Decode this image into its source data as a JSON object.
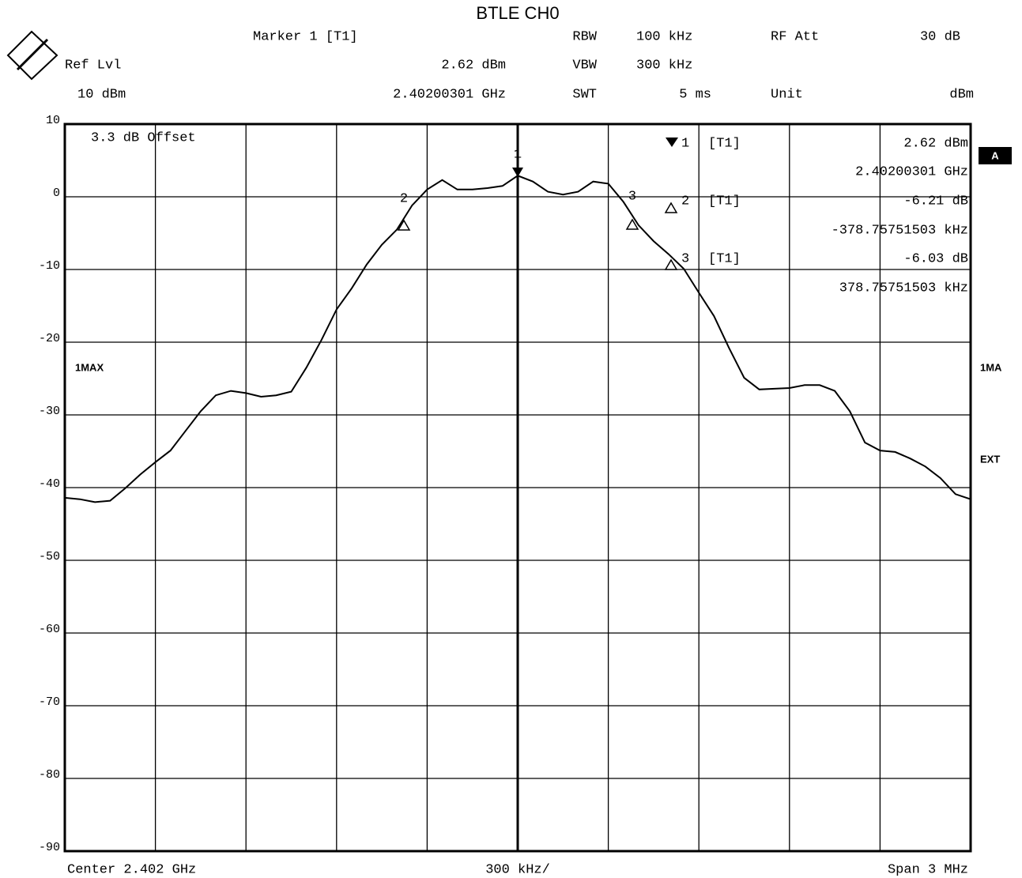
{
  "chart_data": {
    "type": "line",
    "title": "BTLE CH0",
    "header": {
      "marker": "Marker 1 [T1]",
      "rbw_label": "RBW",
      "rbw": "100 kHz",
      "att_label": "RF Att",
      "att": "30 dB",
      "ref_label": "Ref Lvl",
      "marker_level": "2.62 dBm",
      "vbw_label": "VBW",
      "vbw": "300 kHz",
      "ref_level": "10 dBm",
      "marker_freq": "2.40200301 GHz",
      "swt_label": "SWT",
      "swt": "5 ms",
      "unit_label": "Unit",
      "unit": "dBm"
    },
    "offset": "3.3 dB Offset",
    "trace_label": "1MAX",
    "side_labels": [
      "A",
      "1MA",
      "EXT"
    ],
    "markers": [
      {
        "label": "1",
        "trace": "[T1]",
        "level": "2.62 dBm",
        "position": "2.40200301 GHz"
      },
      {
        "label": "2",
        "trace": "[T1]",
        "level": "-6.21 dB",
        "position": "-378.75751503 kHz"
      },
      {
        "label": "3",
        "trace": "[T1]",
        "level": "-6.03 dB",
        "position": "378.75751503 kHz"
      }
    ],
    "footer": {
      "center": "Center 2.402 GHz",
      "div": "300 kHz/",
      "span": "Span 3 MHz"
    },
    "ylim": [
      -90,
      10
    ],
    "yticks": [
      10,
      0,
      -10,
      -20,
      -30,
      -40,
      -50,
      -60,
      -70,
      -80,
      -90
    ],
    "grid": true,
    "color": "#000000",
    "values": [
      -41.4,
      -41.6,
      -42,
      -41.8,
      -40.1,
      -38.2,
      -36.5,
      -34.9,
      -32.2,
      -29.5,
      -27.3,
      -26.7,
      -27,
      -27.5,
      -27.3,
      -26.8,
      -23.5,
      -19.7,
      -15.5,
      -12.6,
      -9.3,
      -6.6,
      -4.5,
      -1.2,
      1,
      2.3,
      1,
      1,
      1.2,
      1.5,
      2.9,
      2.1,
      0.7,
      0.3,
      0.7,
      2.1,
      1.8,
      -0.7,
      -3.9,
      -6.1,
      -7.9,
      -9.9,
      -13.2,
      -16.4,
      -20.8,
      -24.9,
      -26.5,
      -26.4,
      -26.3,
      -25.9,
      -25.9,
      -26.7,
      -29.5,
      -33.8,
      -34.9,
      -35.1,
      -36,
      -37.1,
      -38.7,
      -40.9,
      -41.6
    ]
  }
}
